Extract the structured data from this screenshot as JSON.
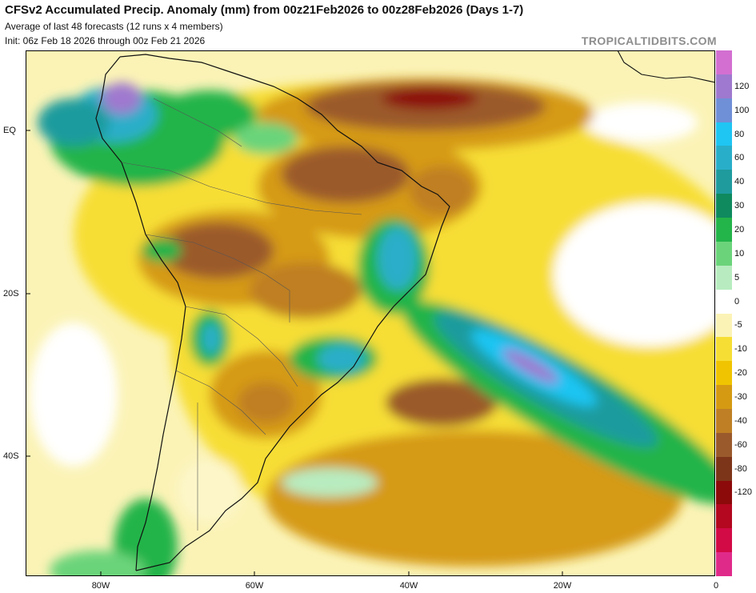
{
  "header": {
    "title": "CFSv2 Accumulated Precip. Anomaly (mm) from 00z21Feb2026 to 00z28Feb2026 (Days 1-7)",
    "subtitle1": "Average of last 48 forecasts (12 runs x 4 members)",
    "subtitle2": "Init: 06z Feb 18 2026 through 00z Feb 21 2026",
    "brand": "TROPICALTIDBITS.COM"
  },
  "axes": {
    "lat_labels": [
      "EQ",
      "20S",
      "40S"
    ],
    "lon_labels": [
      "80W",
      "60W",
      "40W",
      "20W",
      "0"
    ]
  },
  "colorbar": {
    "labels": [
      "120",
      "100",
      "80",
      "60",
      "40",
      "30",
      "20",
      "10",
      "5",
      "0",
      "-5",
      "-10",
      "-20",
      "-30",
      "-40",
      "-60",
      "-80",
      "-120"
    ],
    "colors": [
      "#d36fd1",
      "#9f79cf",
      "#6f8fd7",
      "#1fc5f3",
      "#29aec9",
      "#1f9b9e",
      "#0f8a5f",
      "#23b44a",
      "#6bd47a",
      "#b8ecc0",
      "#ffffff",
      "#fbf3b6",
      "#f7de35",
      "#f0c400",
      "#d59a12",
      "#bf7f24",
      "#9b5a2c",
      "#7d3519",
      "#8c0a0a",
      "#b3081f",
      "#d20a46",
      "#e02a8a"
    ]
  }
}
